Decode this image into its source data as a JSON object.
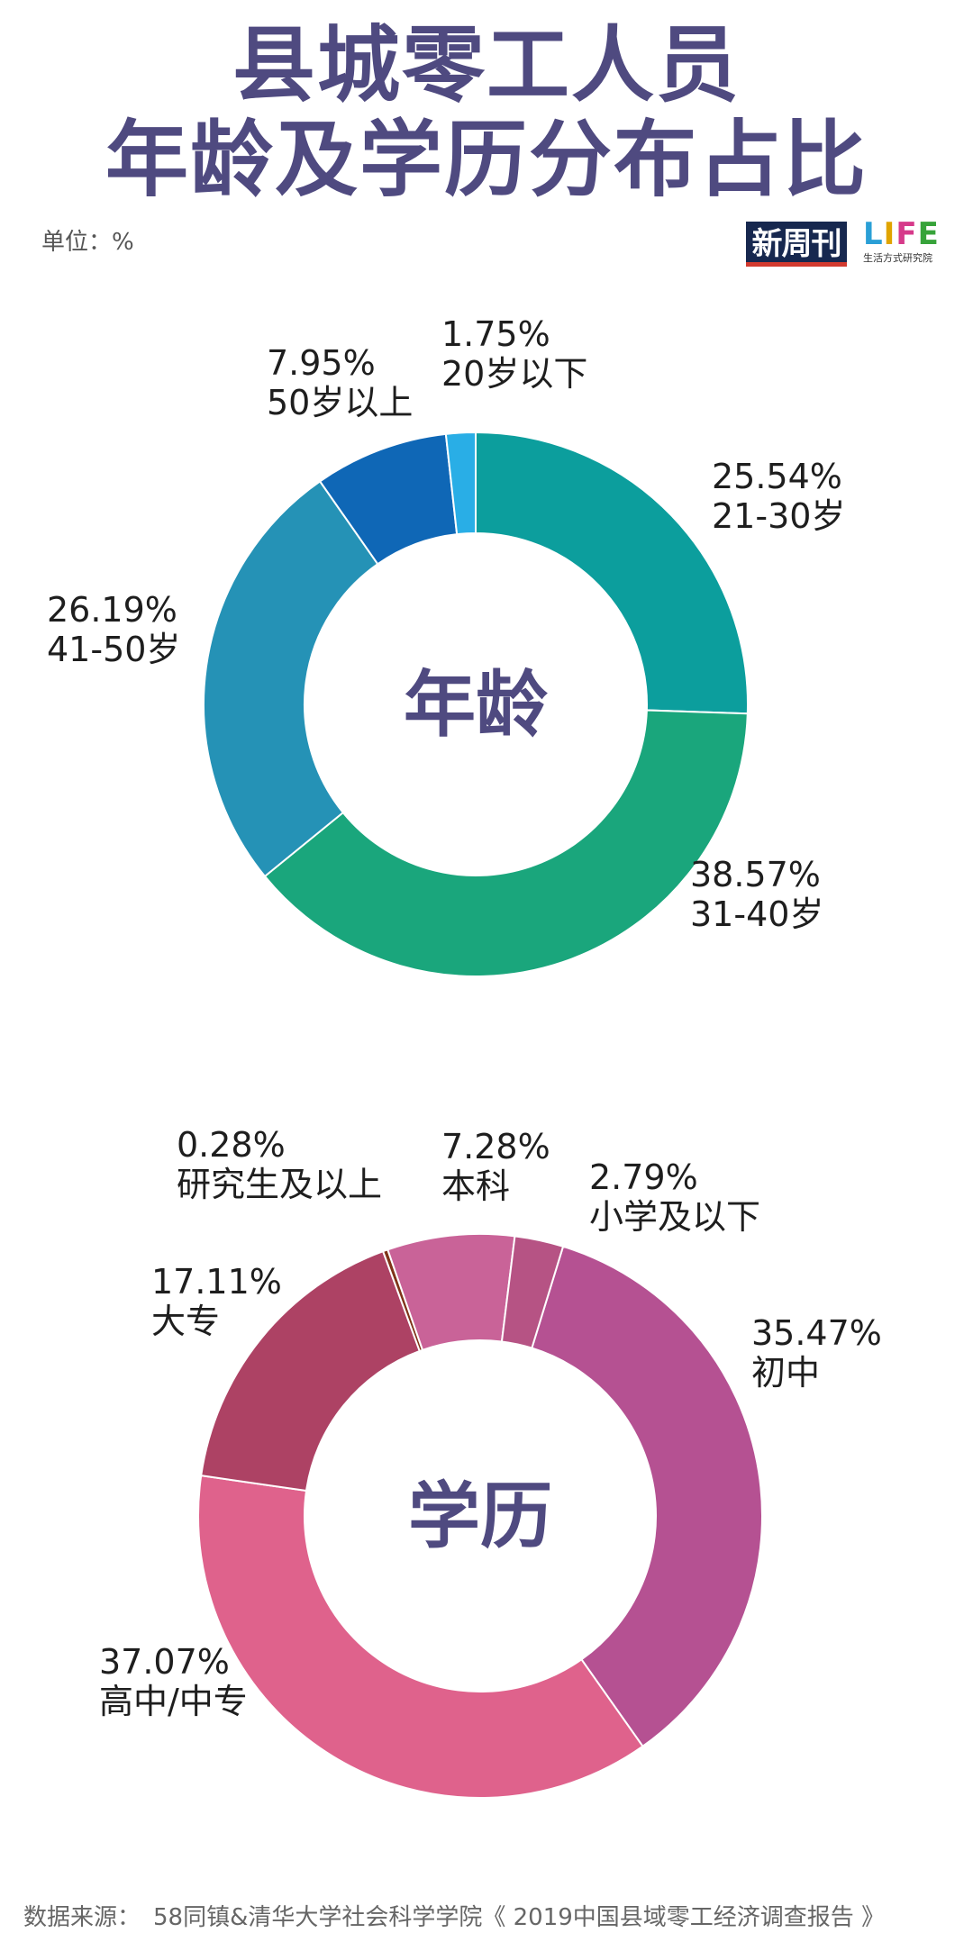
{
  "header": {
    "title_line1": "县城零工人员",
    "title_line2": "年龄及学历分布占比",
    "unit": "单位：%",
    "logo_xinzhoukan": "新周刊",
    "logo_life_word": [
      "L",
      "I",
      "F",
      "E"
    ],
    "logo_life_sub": "生活方式研究院"
  },
  "colors": {
    "title": "#4f4a80",
    "center_label": "#4f4a80"
  },
  "chart_data": [
    {
      "type": "donut",
      "center_label": "年龄",
      "slices": [
        {
          "label": "21-30岁",
          "value": 25.54,
          "display": "25.54%",
          "color": "#0c9e9d"
        },
        {
          "label": "31-40岁",
          "value": 38.57,
          "display": "38.57%",
          "color": "#1aa67c"
        },
        {
          "label": "41-50岁",
          "value": 26.19,
          "display": "26.19%",
          "color": "#2592b6"
        },
        {
          "label": "50岁以上",
          "value": 7.95,
          "display": "7.95%",
          "color": "#0f67b6"
        },
        {
          "label": "20岁以下",
          "value": 1.75,
          "display": "1.75%",
          "color": "#29aee6"
        }
      ]
    },
    {
      "type": "donut",
      "center_label": "学历",
      "slices": [
        {
          "label": "初中",
          "value": 35.47,
          "display": "35.47%",
          "color": "#b55192"
        },
        {
          "label": "高中/中专",
          "value": 37.07,
          "display": "37.07%",
          "color": "#df628c"
        },
        {
          "label": "大专",
          "value": 17.11,
          "display": "17.11%",
          "color": "#ad4264"
        },
        {
          "label": "研究生及以上",
          "value": 0.28,
          "display": "0.28%",
          "color": "#7f3318"
        },
        {
          "label": "本科",
          "value": 7.28,
          "display": "7.28%",
          "color": "#c96398"
        },
        {
          "label": "小学及以下",
          "value": 2.79,
          "display": "2.79%",
          "color": "#b65384"
        }
      ]
    }
  ],
  "footer": {
    "source_label": "数据来源：",
    "source_text": "58同镇&清华大学社会科学学院《 2019中国县域零工经济调查报告 》"
  }
}
